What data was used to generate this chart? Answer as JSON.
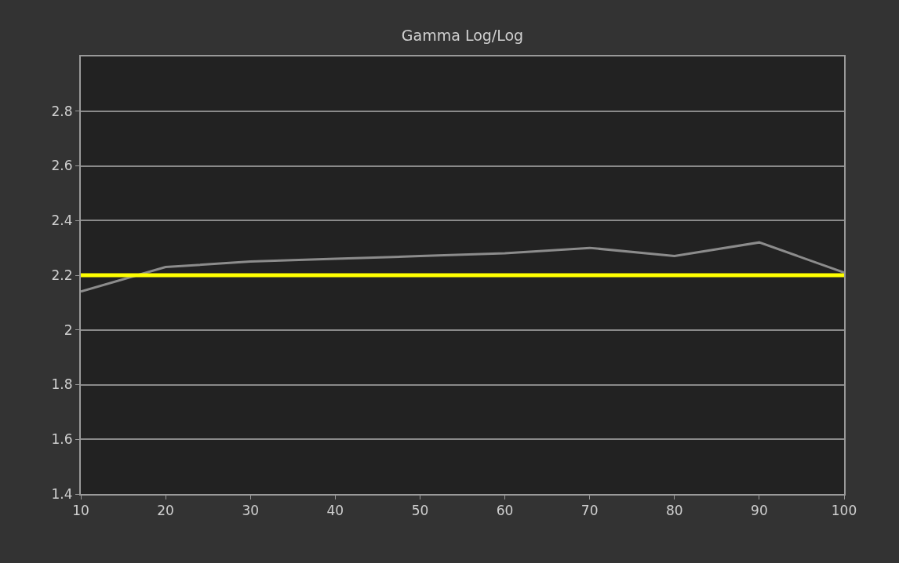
{
  "chart_data": {
    "type": "line",
    "title": "Gamma Log/Log",
    "x": [
      10,
      20,
      30,
      40,
      50,
      60,
      70,
      80,
      90,
      100
    ],
    "series": [
      {
        "color": "#8c8c8c",
        "values": [
          2.14,
          2.23,
          2.25,
          2.26,
          2.27,
          2.28,
          2.3,
          2.27,
          2.32,
          2.21
        ]
      }
    ],
    "xlim": [
      10,
      100
    ],
    "xticks": [
      10,
      20,
      30,
      40,
      50,
      60,
      70,
      80,
      90,
      100
    ],
    "ylim": [
      1.4,
      3.0
    ],
    "yticks": [
      1.4,
      1.6,
      1.8,
      2,
      2.2,
      2.4,
      2.6,
      2.8
    ],
    "ref_lines": [
      {
        "axis": "y",
        "value": 2.2,
        "color": "#ffff00"
      }
    ],
    "grid": "y",
    "marker": "none",
    "line_style": "solid"
  }
}
